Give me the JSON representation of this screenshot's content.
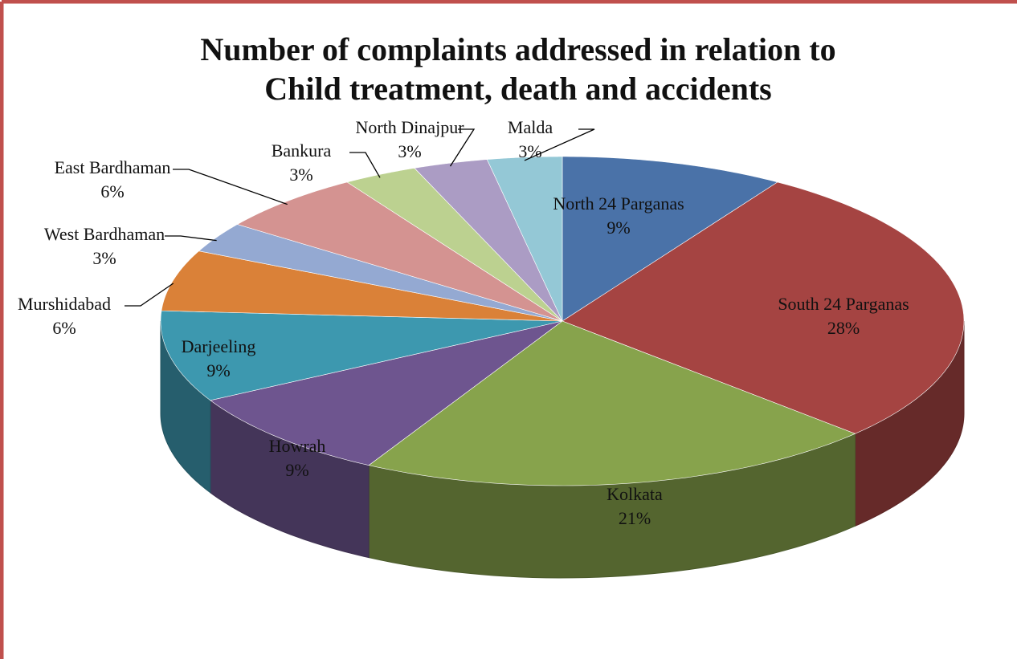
{
  "chart_data": {
    "type": "pie3d",
    "title": [
      "Number of complaints addressed in relation to",
      "Child treatment, death and accidents"
    ],
    "categories": [
      "North 24 Parganas",
      "South 24 Parganas",
      "Kolkata",
      "Howrah",
      "Darjeeling",
      "Murshidabad",
      "West Bardhaman",
      "East Bardhaman",
      "Bankura",
      "North Dinajpur",
      "Malda"
    ],
    "values": [
      9,
      28,
      21,
      9,
      9,
      6,
      3,
      6,
      3,
      3,
      3
    ],
    "value_labels": [
      "9%",
      "28%",
      "21%",
      "9%",
      "9%",
      "6%",
      "3%",
      "6%",
      "3%",
      "3%",
      "3%"
    ],
    "colors": [
      "#4a72a8",
      "#a54442",
      "#87a34c",
      "#6e558f",
      "#3d98af",
      "#da8138",
      "#94a9d2",
      "#d49391",
      "#bcd190",
      "#ab9cc4",
      "#94c8d6"
    ]
  }
}
